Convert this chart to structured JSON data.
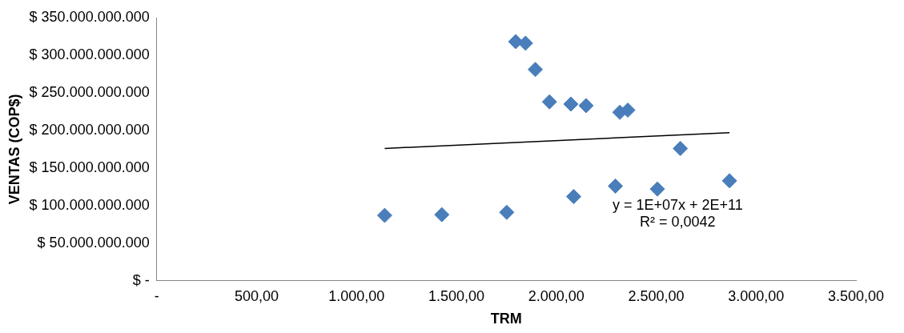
{
  "chart_data": {
    "type": "scatter",
    "xlabel": "TRM",
    "ylabel": "VENTAS (COP$)",
    "xlim": [
      0,
      3500
    ],
    "ylim": [
      0,
      350000000000
    ],
    "xticks": [
      {
        "value": 0,
        "label": "-"
      },
      {
        "value": 500,
        "label": "500,00"
      },
      {
        "value": 1000,
        "label": "1.000,00"
      },
      {
        "value": 1500,
        "label": "1.500,00"
      },
      {
        "value": 2000,
        "label": "2.000,00"
      },
      {
        "value": 2500,
        "label": "2.500,00"
      },
      {
        "value": 3000,
        "label": "3.000,00"
      },
      {
        "value": 3500,
        "label": "3.500,00"
      }
    ],
    "yticks": [
      {
        "value": 0,
        "label": "$ -"
      },
      {
        "value": 50000000000,
        "label": "$ 50.000.000.000"
      },
      {
        "value": 100000000000,
        "label": "$ 100.000.000.000"
      },
      {
        "value": 150000000000,
        "label": "$ 150.000.000.000"
      },
      {
        "value": 200000000000,
        "label": "$ 200.000.000.000"
      },
      {
        "value": 250000000000,
        "label": "$ 250.000.000.000"
      },
      {
        "value": 300000000000,
        "label": "$ 300.000.000.000"
      },
      {
        "value": 350000000000,
        "label": "$ 350.000.000.000"
      }
    ],
    "grid": false,
    "legend": false,
    "marker": "diamond",
    "annotations": [
      "y = 1E+07x + 2E+11",
      "R² = 0,0042"
    ],
    "series": [
      {
        "color": "#4a7ebb",
        "x": [
          1141,
          1427,
          1752,
          1797,
          1846,
          1895,
          1966,
          2073,
          2087,
          2149,
          2318,
          2358,
          2296,
          2506,
          2621,
          2867
        ],
        "values": [
          87000000000,
          88000000000,
          91000000000,
          318000000000,
          316000000000,
          281000000000,
          238000000000,
          235000000000,
          112000000000,
          233000000000,
          224000000000,
          227000000000,
          126000000000,
          122000000000,
          176000000000,
          133000000000
        ]
      },
      {
        "type": "line",
        "color": "#000000",
        "marker": "none",
        "x": [
          1141,
          2867
        ],
        "values": [
          176000000000,
          197000000000
        ]
      }
    ]
  }
}
